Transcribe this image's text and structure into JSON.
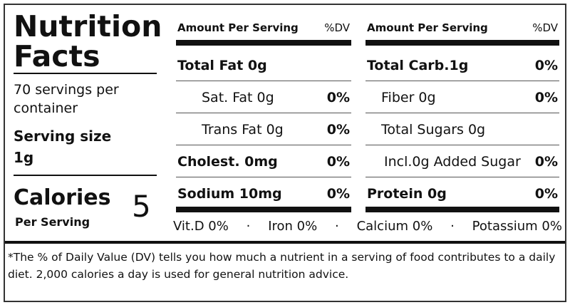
{
  "header": {
    "title_line1": "Nutrition",
    "title_line2": "Facts",
    "servings": "70 servings per container",
    "serving_size_label": "Serving size",
    "serving_size": "1g",
    "calories_label": "Calories",
    "calories_sub": "Per Serving",
    "calories": 5
  },
  "columns": [
    {
      "heading": "Amount Per Serving",
      "dv_heading": "%DV",
      "rows": [
        {
          "name": "Total Fat 0g"
        },
        {
          "name": "Sat. Fat 0g",
          "dv": "0%"
        },
        {
          "name": "Trans Fat 0g",
          "dv": "0%"
        },
        {
          "name": "Cholest. 0mg",
          "dv": "0%"
        },
        {
          "name": "Sodium 10mg",
          "dv": "0%"
        }
      ]
    },
    {
      "heading": "Amount Per Serving",
      "dv_heading": "%DV",
      "rows": [
        {
          "name": "Total Carb.1g",
          "dv": "0%"
        },
        {
          "name": "Fiber 0g",
          "dv": "0%"
        },
        {
          "name": "Total Sugars 0g"
        },
        {
          "name": "Incl.0g Added Sugar",
          "dv": "0%"
        },
        {
          "name": "Protein 0g",
          "dv": "0%"
        }
      ]
    }
  ],
  "vitamins": [
    "Vit.D 0%",
    "Iron 0%",
    "Calcium 0%",
    "Potassium 0%"
  ],
  "footnote": "*The % of Daily Value (DV) tells you how much a nutrient in a serving of food contributes to a daily diet. 2,000 calories a day is used for general nutrition advice."
}
